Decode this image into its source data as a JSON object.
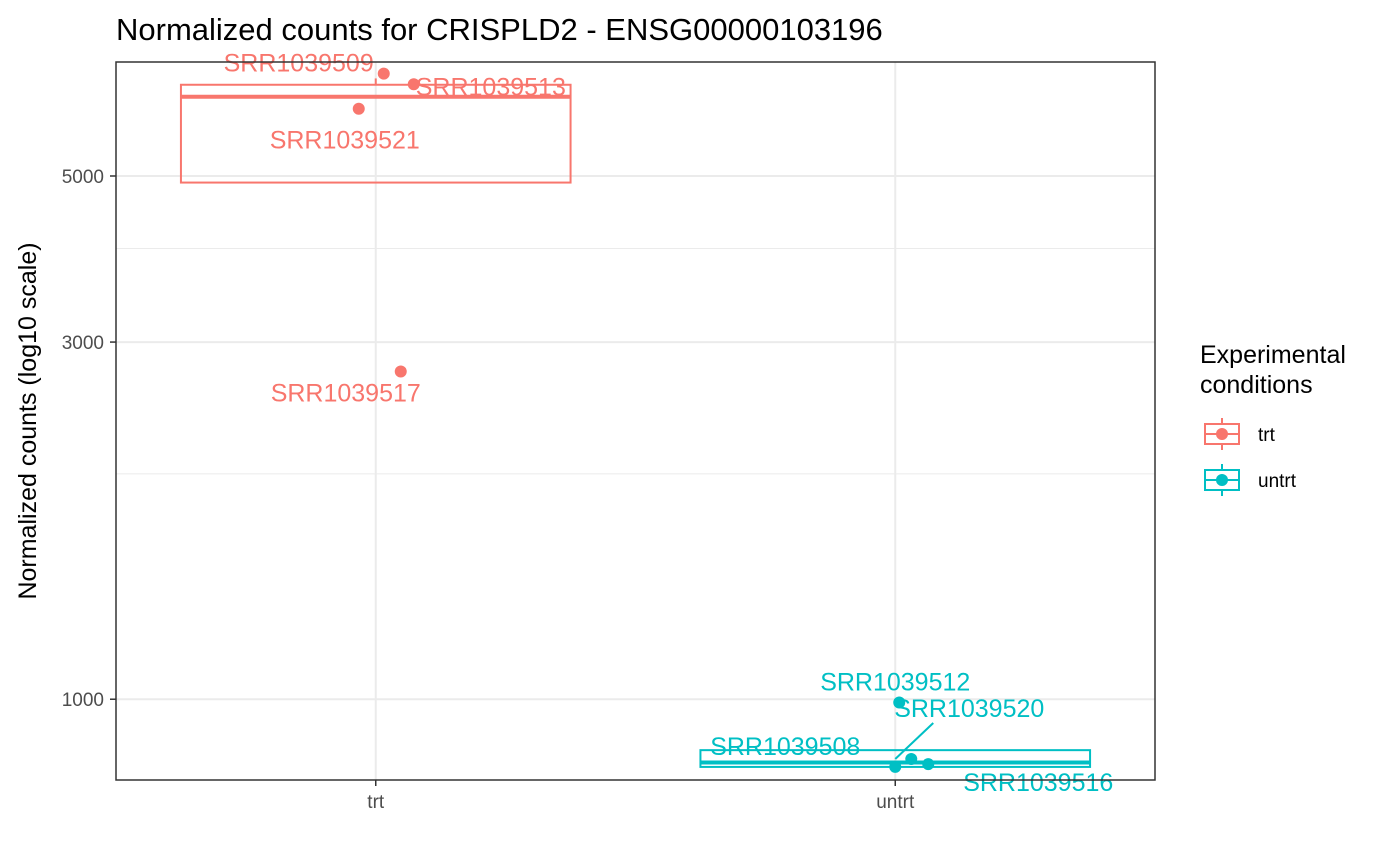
{
  "chart_data": {
    "type": "boxplot",
    "title": "Normalized counts for CRISPLD2 - ENSG00000103196",
    "xlabel": "",
    "ylabel": "Normalized counts (log10 scale)",
    "y_scale": "log10",
    "ylim": [
      780,
      7100
    ],
    "y_major_ticks": [
      1000,
      3000,
      5000
    ],
    "y_minor_ticks": [
      2000,
      4000
    ],
    "y_tick_labels": [
      "1000",
      "3000",
      "5000"
    ],
    "categories": [
      "trt",
      "untrt"
    ],
    "grid": true,
    "legend": {
      "title_lines": [
        "Experimental",
        "conditions"
      ],
      "position": "right",
      "entries": [
        {
          "label": "trt",
          "color": "#F8766D"
        },
        {
          "label": "untrt",
          "color": "#00BFC4"
        }
      ]
    },
    "boxes": [
      {
        "group": "trt",
        "color": "#F8766D",
        "q1": 4900,
        "median": 6380,
        "q3": 6620,
        "whisker_low": 4900,
        "whisker_high": 6750
      },
      {
        "group": "untrt",
        "color": "#00BFC4",
        "q1": 812,
        "median": 823,
        "q3": 855,
        "whisker_low": 812,
        "whisker_high": 855
      }
    ],
    "series": [
      {
        "name": "trt",
        "color": "#F8766D",
        "points": [
          {
            "label": "SRR1039509",
            "x": "trt",
            "y": 6850
          },
          {
            "label": "SRR1039513",
            "x": "trt",
            "y": 6630
          },
          {
            "label": "SRR1039521",
            "x": "trt",
            "y": 6150
          },
          {
            "label": "SRR1039517",
            "x": "trt",
            "y": 2740
          }
        ]
      },
      {
        "name": "untrt",
        "color": "#00BFC4",
        "points": [
          {
            "label": "SRR1039512",
            "x": "untrt",
            "y": 990
          },
          {
            "label": "SRR1039520",
            "x": "untrt",
            "y": 832
          },
          {
            "label": "SRR1039508",
            "x": "untrt",
            "y": 812
          },
          {
            "label": "SRR1039516",
            "x": "untrt",
            "y": 819
          }
        ]
      }
    ]
  }
}
